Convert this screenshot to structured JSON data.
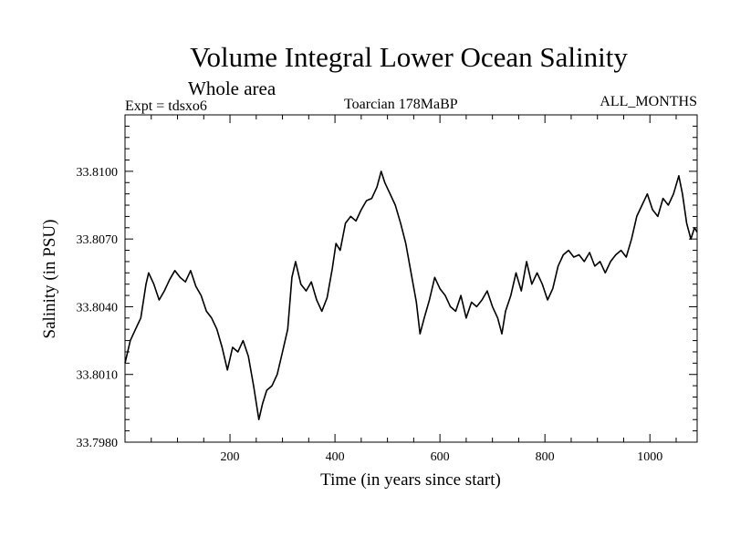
{
  "chart_data": {
    "type": "line",
    "title": "Volume Integral Lower Ocean Salinity",
    "subtitle": "Whole area",
    "experiment": "Expt = tdsxo6",
    "period": "Toarcian 178MaBP",
    "months": "ALL_MONTHS",
    "xlabel": "Time (in years since start)",
    "ylabel": "Salinity (in PSU)",
    "xlim": [
      0,
      1090
    ],
    "ylim": [
      33.798,
      33.8125
    ],
    "xticks": [
      200,
      400,
      600,
      800,
      1000
    ],
    "xtick_labels": [
      "200",
      "400",
      "600",
      "800",
      "1000"
    ],
    "yticks": [
      33.798,
      33.801,
      33.804,
      33.807,
      33.81
    ],
    "ytick_labels": [
      "33.7980",
      "33.8010",
      "33.8040",
      "33.8070",
      "33.8100"
    ],
    "grid": false,
    "series": [
      {
        "name": "Salinity",
        "color": "#000000",
        "points": [
          [
            0,
            33.8015
          ],
          [
            10,
            33.8025
          ],
          [
            20,
            33.803
          ],
          [
            30,
            33.8035
          ],
          [
            40,
            33.805
          ],
          [
            45,
            33.8055
          ],
          [
            55,
            33.805
          ],
          [
            65,
            33.8043
          ],
          [
            75,
            33.8047
          ],
          [
            85,
            33.8052
          ],
          [
            95,
            33.8056
          ],
          [
            105,
            33.8053
          ],
          [
            115,
            33.8051
          ],
          [
            125,
            33.8056
          ],
          [
            135,
            33.8049
          ],
          [
            145,
            33.8045
          ],
          [
            155,
            33.8038
          ],
          [
            165,
            33.8035
          ],
          [
            175,
            33.803
          ],
          [
            185,
            33.8022
          ],
          [
            195,
            33.8012
          ],
          [
            205,
            33.8022
          ],
          [
            215,
            33.802
          ],
          [
            225,
            33.8025
          ],
          [
            235,
            33.8018
          ],
          [
            245,
            33.8005
          ],
          [
            255,
            33.799
          ],
          [
            262,
            33.7997
          ],
          [
            270,
            33.8003
          ],
          [
            280,
            33.8005
          ],
          [
            290,
            33.801
          ],
          [
            300,
            33.802
          ],
          [
            310,
            33.803
          ],
          [
            318,
            33.8053
          ],
          [
            325,
            33.806
          ],
          [
            335,
            33.805
          ],
          [
            345,
            33.8047
          ],
          [
            355,
            33.8051
          ],
          [
            365,
            33.8043
          ],
          [
            375,
            33.8038
          ],
          [
            385,
            33.8044
          ],
          [
            395,
            33.8057
          ],
          [
            402,
            33.8068
          ],
          [
            410,
            33.8065
          ],
          [
            420,
            33.8077
          ],
          [
            430,
            33.808
          ],
          [
            440,
            33.8078
          ],
          [
            450,
            33.8083
          ],
          [
            460,
            33.8087
          ],
          [
            470,
            33.8088
          ],
          [
            480,
            33.8093
          ],
          [
            488,
            33.81
          ],
          [
            495,
            33.8095
          ],
          [
            505,
            33.809
          ],
          [
            515,
            33.8085
          ],
          [
            525,
            33.8077
          ],
          [
            535,
            33.8068
          ],
          [
            545,
            33.8055
          ],
          [
            555,
            33.8042
          ],
          [
            562,
            33.8028
          ],
          [
            570,
            33.8035
          ],
          [
            580,
            33.8043
          ],
          [
            590,
            33.8053
          ],
          [
            600,
            33.8048
          ],
          [
            610,
            33.8045
          ],
          [
            620,
            33.804
          ],
          [
            630,
            33.8038
          ],
          [
            640,
            33.8045
          ],
          [
            650,
            33.8035
          ],
          [
            660,
            33.8042
          ],
          [
            670,
            33.804
          ],
          [
            680,
            33.8043
          ],
          [
            690,
            33.8047
          ],
          [
            700,
            33.804
          ],
          [
            710,
            33.8035
          ],
          [
            718,
            33.8028
          ],
          [
            725,
            33.8038
          ],
          [
            735,
            33.8045
          ],
          [
            745,
            33.8055
          ],
          [
            755,
            33.8047
          ],
          [
            765,
            33.806
          ],
          [
            775,
            33.805
          ],
          [
            785,
            33.8055
          ],
          [
            795,
            33.805
          ],
          [
            805,
            33.8043
          ],
          [
            815,
            33.8048
          ],
          [
            825,
            33.8058
          ],
          [
            835,
            33.8063
          ],
          [
            845,
            33.8065
          ],
          [
            855,
            33.8062
          ],
          [
            865,
            33.8063
          ],
          [
            875,
            33.806
          ],
          [
            885,
            33.8064
          ],
          [
            895,
            33.8058
          ],
          [
            905,
            33.806
          ],
          [
            915,
            33.8055
          ],
          [
            925,
            33.806
          ],
          [
            935,
            33.8063
          ],
          [
            945,
            33.8065
          ],
          [
            955,
            33.8062
          ],
          [
            965,
            33.807
          ],
          [
            975,
            33.808
          ],
          [
            985,
            33.8085
          ],
          [
            995,
            33.809
          ],
          [
            1005,
            33.8083
          ],
          [
            1015,
            33.808
          ],
          [
            1025,
            33.8088
          ],
          [
            1035,
            33.8085
          ],
          [
            1045,
            33.809
          ],
          [
            1055,
            33.8098
          ],
          [
            1062,
            33.809
          ],
          [
            1070,
            33.8077
          ],
          [
            1078,
            33.807
          ],
          [
            1085,
            33.8075
          ],
          [
            1090,
            33.8073
          ]
        ]
      }
    ]
  }
}
